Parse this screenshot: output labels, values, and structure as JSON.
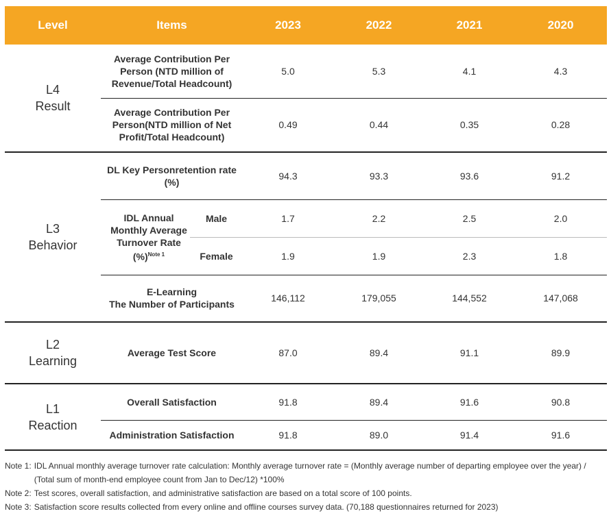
{
  "header": {
    "level": "Level",
    "items": "Items",
    "years": [
      "2023",
      "2022",
      "2021",
      "2020"
    ]
  },
  "l4": {
    "level_line1": "L4",
    "level_line2": "Result",
    "rows": [
      {
        "label": "Average Contribution Per Person (NTD million of Revenue/Total Headcount)",
        "values": [
          "5.0",
          "5.3",
          "4.1",
          "4.3"
        ]
      },
      {
        "label": "Average Contribution Per Person(NTD million of Net Profit/Total Headcount)",
        "values": [
          "0.49",
          "0.44",
          "0.35",
          "0.28"
        ]
      }
    ]
  },
  "l3": {
    "level_line1": "L3",
    "level_line2": "Behavior",
    "retention": {
      "label": "DL Key Personretention rate (%)",
      "values": [
        "94.3",
        "93.3",
        "93.6",
        "91.2"
      ]
    },
    "turnover": {
      "label": "IDL Annual Monthly Average Turnover Rate (%)",
      "note_mark": "Note 1",
      "male": {
        "label": "Male",
        "values": [
          "1.7",
          "2.2",
          "2.5",
          "2.0"
        ]
      },
      "female": {
        "label": "Female",
        "values": [
          "1.9",
          "1.9",
          "2.3",
          "1.8"
        ]
      }
    },
    "elearning": {
      "label_line1": "E-Learning",
      "label_line2": "The Number of Participants",
      "values": [
        "146,112",
        "179,055",
        "144,552",
        "147,068"
      ]
    }
  },
  "l2": {
    "level_line1": "L2",
    "level_line2": "Learning",
    "test": {
      "label": "Average Test Score",
      "values": [
        "87.0",
        "89.4",
        "91.1",
        "89.9"
      ]
    }
  },
  "l1": {
    "level_line1": "L1",
    "level_line2": "Reaction",
    "overall": {
      "label": "Overall Satisfaction",
      "values": [
        "91.8",
        "89.4",
        "91.6",
        "90.8"
      ]
    },
    "admin": {
      "label": "Administration Satisfaction",
      "values": [
        "91.8",
        "89.0",
        "91.4",
        "91.6"
      ]
    }
  },
  "notes": [
    {
      "label": "Note 1:",
      "text": "IDL Annual monthly average turnover rate calculation: Monthly average turnover rate = (Monthly average number of departing employee over the year) / (Total sum of month-end employee count from Jan to Dec/12) *100%"
    },
    {
      "label": "Note 2:",
      "text": "Test scores, overall satisfaction, and administrative satisfaction are based on a total score of 100 points."
    },
    {
      "label": "Note 3:",
      "text": "Satisfaction score results collected from every online and offline courses survey data. (70,188 questionnaires returned for 2023)"
    }
  ]
}
